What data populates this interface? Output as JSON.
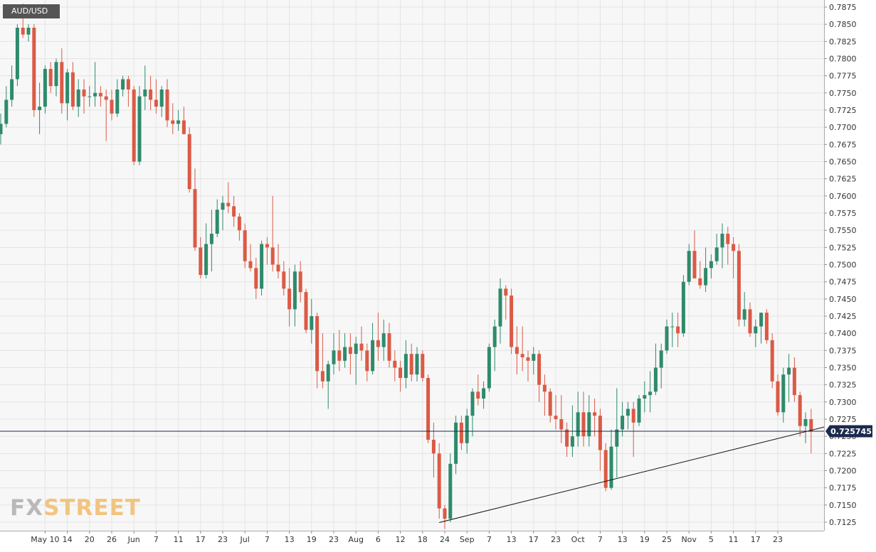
{
  "chart_data": {
    "type": "candlestick",
    "symbol": "AUD/USD",
    "brand": {
      "fx": "FX",
      "street": "STREET"
    },
    "current_price_label": "0.725745",
    "current_price": 0.725745,
    "ylim": [
      0.7115,
      0.7885
    ],
    "y_ticks": [
      "0.7875",
      "0.7850",
      "0.7825",
      "0.7800",
      "0.7775",
      "0.7750",
      "0.7725",
      "0.7700",
      "0.7675",
      "0.7650",
      "0.7625",
      "0.7600",
      "0.7575",
      "0.7550",
      "0.7525",
      "0.7500",
      "0.7475",
      "0.7450",
      "0.7425",
      "0.7400",
      "0.7375",
      "0.7350",
      "0.7325",
      "0.7300",
      "0.7275",
      "0.7250",
      "0.7225",
      "0.7200",
      "0.7175",
      "0.7150",
      "0.7125"
    ],
    "x_ticks": [
      {
        "index": 8,
        "label": "May 10"
      },
      {
        "index": 12,
        "label": "14"
      },
      {
        "index": 16,
        "label": "20"
      },
      {
        "index": 20,
        "label": "26"
      },
      {
        "index": 24,
        "label": "Jun"
      },
      {
        "index": 28,
        "label": "7"
      },
      {
        "index": 32,
        "label": "11"
      },
      {
        "index": 36,
        "label": "17"
      },
      {
        "index": 40,
        "label": "23"
      },
      {
        "index": 44,
        "label": "Jul"
      },
      {
        "index": 48,
        "label": "7"
      },
      {
        "index": 52,
        "label": "13"
      },
      {
        "index": 56,
        "label": "19"
      },
      {
        "index": 60,
        "label": "23"
      },
      {
        "index": 64,
        "label": "Aug"
      },
      {
        "index": 68,
        "label": "6"
      },
      {
        "index": 72,
        "label": "12"
      },
      {
        "index": 76,
        "label": "18"
      },
      {
        "index": 80,
        "label": "24"
      },
      {
        "index": 84,
        "label": "Sep"
      },
      {
        "index": 88,
        "label": "7"
      },
      {
        "index": 92,
        "label": "13"
      },
      {
        "index": 96,
        "label": "17"
      },
      {
        "index": 100,
        "label": "23"
      },
      {
        "index": 104,
        "label": "Oct"
      },
      {
        "index": 108,
        "label": "7"
      },
      {
        "index": 112,
        "label": "13"
      },
      {
        "index": 116,
        "label": "19"
      },
      {
        "index": 120,
        "label": "25"
      },
      {
        "index": 124,
        "label": "Nov"
      },
      {
        "index": 128,
        "label": "5"
      },
      {
        "index": 132,
        "label": "11"
      },
      {
        "index": 136,
        "label": "17"
      },
      {
        "index": 140,
        "label": "23"
      }
    ],
    "trendline": {
      "from": {
        "index": 79,
        "price": 0.71245
      },
      "to": {
        "index": 144,
        "price": 0.72548
      }
    },
    "colors": {
      "up": "#2f8a6c",
      "down": "#db5a46",
      "background": "#f7f7f7",
      "grid": "#e4e4e4",
      "price_line": "#1b2a4e",
      "label_bg": "#1b2a4e",
      "trendline": "#111111"
    },
    "candles": [
      [
        0.769,
        0.772,
        0.7675,
        0.7705
      ],
      [
        0.7705,
        0.776,
        0.77,
        0.774
      ],
      [
        0.774,
        0.779,
        0.773,
        0.777
      ],
      [
        0.777,
        0.785,
        0.776,
        0.7845
      ],
      [
        0.7845,
        0.788,
        0.783,
        0.7835
      ],
      [
        0.7835,
        0.785,
        0.7825,
        0.7845
      ],
      [
        0.7845,
        0.785,
        0.7715,
        0.7725
      ],
      [
        0.7725,
        0.7765,
        0.769,
        0.773
      ],
      [
        0.773,
        0.779,
        0.772,
        0.7785
      ],
      [
        0.7785,
        0.7795,
        0.775,
        0.776
      ],
      [
        0.776,
        0.78,
        0.7745,
        0.7795
      ],
      [
        0.7795,
        0.7815,
        0.772,
        0.7735
      ],
      [
        0.7735,
        0.7785,
        0.771,
        0.778
      ],
      [
        0.778,
        0.7795,
        0.7725,
        0.773
      ],
      [
        0.773,
        0.777,
        0.7715,
        0.7755
      ],
      [
        0.7755,
        0.777,
        0.772,
        0.7745
      ],
      [
        0.7745,
        0.776,
        0.773,
        0.7745
      ],
      [
        0.7745,
        0.7795,
        0.773,
        0.775
      ],
      [
        0.775,
        0.776,
        0.773,
        0.7745
      ],
      [
        0.7745,
        0.7755,
        0.768,
        0.774
      ],
      [
        0.774,
        0.7755,
        0.771,
        0.772
      ],
      [
        0.772,
        0.777,
        0.7715,
        0.7755
      ],
      [
        0.7755,
        0.7775,
        0.7745,
        0.777
      ],
      [
        0.777,
        0.7775,
        0.773,
        0.7755
      ],
      [
        0.7755,
        0.776,
        0.7645,
        0.765
      ],
      [
        0.765,
        0.776,
        0.7645,
        0.7745
      ],
      [
        0.7745,
        0.779,
        0.7725,
        0.7755
      ],
      [
        0.7755,
        0.7775,
        0.7725,
        0.774
      ],
      [
        0.774,
        0.777,
        0.772,
        0.773
      ],
      [
        0.773,
        0.776,
        0.7715,
        0.7755
      ],
      [
        0.7755,
        0.777,
        0.77,
        0.771
      ],
      [
        0.771,
        0.7735,
        0.769,
        0.7705
      ],
      [
        0.7705,
        0.7725,
        0.7695,
        0.771
      ],
      [
        0.771,
        0.773,
        0.769,
        0.769
      ],
      [
        0.769,
        0.77,
        0.7605,
        0.761
      ],
      [
        0.761,
        0.764,
        0.752,
        0.7525
      ],
      [
        0.7525,
        0.754,
        0.748,
        0.7485
      ],
      [
        0.7485,
        0.756,
        0.748,
        0.753
      ],
      [
        0.753,
        0.758,
        0.749,
        0.7545
      ],
      [
        0.7545,
        0.7595,
        0.754,
        0.758
      ],
      [
        0.758,
        0.76,
        0.755,
        0.759
      ],
      [
        0.759,
        0.762,
        0.7575,
        0.7585
      ],
      [
        0.7585,
        0.76,
        0.7555,
        0.757
      ],
      [
        0.757,
        0.7575,
        0.7535,
        0.755
      ],
      [
        0.755,
        0.756,
        0.7495,
        0.7505
      ],
      [
        0.7505,
        0.753,
        0.749,
        0.7495
      ],
      [
        0.7495,
        0.751,
        0.745,
        0.7465
      ],
      [
        0.7465,
        0.7535,
        0.7455,
        0.753
      ],
      [
        0.753,
        0.754,
        0.75,
        0.7525
      ],
      [
        0.7525,
        0.76,
        0.749,
        0.75
      ],
      [
        0.75,
        0.753,
        0.748,
        0.749
      ],
      [
        0.749,
        0.7505,
        0.7455,
        0.7465
      ],
      [
        0.7465,
        0.7495,
        0.741,
        0.7435
      ],
      [
        0.7435,
        0.75,
        0.741,
        0.749
      ],
      [
        0.749,
        0.7505,
        0.7445,
        0.746
      ],
      [
        0.746,
        0.7465,
        0.74,
        0.7405
      ],
      [
        0.7405,
        0.745,
        0.7385,
        0.7425
      ],
      [
        0.7425,
        0.743,
        0.732,
        0.7345
      ],
      [
        0.7345,
        0.74,
        0.732,
        0.733
      ],
      [
        0.733,
        0.736,
        0.729,
        0.7355
      ],
      [
        0.7355,
        0.74,
        0.734,
        0.7375
      ],
      [
        0.7375,
        0.7405,
        0.7345,
        0.736
      ],
      [
        0.736,
        0.74,
        0.735,
        0.738
      ],
      [
        0.738,
        0.74,
        0.734,
        0.737
      ],
      [
        0.737,
        0.7395,
        0.7325,
        0.7385
      ],
      [
        0.7385,
        0.741,
        0.736,
        0.7375
      ],
      [
        0.7375,
        0.7385,
        0.733,
        0.7345
      ],
      [
        0.7345,
        0.7415,
        0.734,
        0.739
      ],
      [
        0.739,
        0.743,
        0.736,
        0.738
      ],
      [
        0.738,
        0.742,
        0.736,
        0.74
      ],
      [
        0.74,
        0.7415,
        0.735,
        0.736
      ],
      [
        0.736,
        0.7375,
        0.733,
        0.735
      ],
      [
        0.735,
        0.736,
        0.7315,
        0.7335
      ],
      [
        0.7335,
        0.739,
        0.732,
        0.737
      ],
      [
        0.737,
        0.7385,
        0.733,
        0.734
      ],
      [
        0.734,
        0.738,
        0.733,
        0.737
      ],
      [
        0.737,
        0.7375,
        0.733,
        0.7335
      ],
      [
        0.7335,
        0.734,
        0.724,
        0.7245
      ],
      [
        0.7245,
        0.727,
        0.719,
        0.7225
      ],
      [
        0.7225,
        0.724,
        0.713,
        0.7145
      ],
      [
        0.7145,
        0.715,
        0.7115,
        0.713
      ],
      [
        0.713,
        0.7225,
        0.7125,
        0.721
      ],
      [
        0.721,
        0.728,
        0.7195,
        0.727
      ],
      [
        0.727,
        0.728,
        0.723,
        0.724
      ],
      [
        0.724,
        0.729,
        0.7225,
        0.728
      ],
      [
        0.728,
        0.732,
        0.725,
        0.7315
      ],
      [
        0.7315,
        0.734,
        0.7295,
        0.7305
      ],
      [
        0.7305,
        0.733,
        0.729,
        0.732
      ],
      [
        0.732,
        0.7385,
        0.7315,
        0.738
      ],
      [
        0.738,
        0.742,
        0.7345,
        0.741
      ],
      [
        0.741,
        0.748,
        0.7385,
        0.7465
      ],
      [
        0.7465,
        0.747,
        0.742,
        0.7455
      ],
      [
        0.7455,
        0.7465,
        0.737,
        0.738
      ],
      [
        0.738,
        0.741,
        0.734,
        0.737
      ],
      [
        0.737,
        0.741,
        0.7345,
        0.7365
      ],
      [
        0.7365,
        0.7375,
        0.733,
        0.736
      ],
      [
        0.736,
        0.738,
        0.734,
        0.737
      ],
      [
        0.737,
        0.7375,
        0.73,
        0.7325
      ],
      [
        0.7325,
        0.734,
        0.728,
        0.7315
      ],
      [
        0.7315,
        0.732,
        0.727,
        0.728
      ],
      [
        0.728,
        0.731,
        0.726,
        0.7275
      ],
      [
        0.7275,
        0.731,
        0.724,
        0.726
      ],
      [
        0.726,
        0.727,
        0.722,
        0.7235
      ],
      [
        0.7235,
        0.7295,
        0.722,
        0.725
      ],
      [
        0.725,
        0.7315,
        0.7235,
        0.7285
      ],
      [
        0.7285,
        0.7315,
        0.7235,
        0.725
      ],
      [
        0.725,
        0.731,
        0.7235,
        0.7285
      ],
      [
        0.7285,
        0.7305,
        0.725,
        0.728
      ],
      [
        0.728,
        0.729,
        0.72,
        0.723
      ],
      [
        0.723,
        0.724,
        0.717,
        0.7175
      ],
      [
        0.7175,
        0.726,
        0.7172,
        0.7235
      ],
      [
        0.7235,
        0.732,
        0.719,
        0.726
      ],
      [
        0.726,
        0.73,
        0.725,
        0.728
      ],
      [
        0.728,
        0.73,
        0.726,
        0.729
      ],
      [
        0.729,
        0.73,
        0.722,
        0.727
      ],
      [
        0.727,
        0.731,
        0.7265,
        0.7305
      ],
      [
        0.7305,
        0.733,
        0.7285,
        0.731
      ],
      [
        0.731,
        0.7345,
        0.7285,
        0.7315
      ],
      [
        0.7315,
        0.7385,
        0.731,
        0.735
      ],
      [
        0.735,
        0.7385,
        0.732,
        0.7375
      ],
      [
        0.7375,
        0.742,
        0.737,
        0.741
      ],
      [
        0.741,
        0.743,
        0.738,
        0.741
      ],
      [
        0.741,
        0.743,
        0.738,
        0.74
      ],
      [
        0.74,
        0.7485,
        0.7395,
        0.7475
      ],
      [
        0.7475,
        0.753,
        0.747,
        0.752
      ],
      [
        0.752,
        0.755,
        0.748,
        0.748
      ],
      [
        0.748,
        0.7505,
        0.7465,
        0.747
      ],
      [
        0.747,
        0.7525,
        0.746,
        0.7495
      ],
      [
        0.7495,
        0.7515,
        0.748,
        0.7505
      ],
      [
        0.7505,
        0.7545,
        0.75,
        0.7525
      ],
      [
        0.7525,
        0.756,
        0.7495,
        0.7545
      ],
      [
        0.7545,
        0.7555,
        0.75,
        0.753
      ],
      [
        0.753,
        0.754,
        0.748,
        0.752
      ],
      [
        0.752,
        0.753,
        0.741,
        0.742
      ],
      [
        0.742,
        0.746,
        0.741,
        0.7435
      ],
      [
        0.7435,
        0.7445,
        0.7395,
        0.74
      ],
      [
        0.74,
        0.742,
        0.738,
        0.741
      ],
      [
        0.741,
        0.743,
        0.7385,
        0.743
      ],
      [
        0.743,
        0.7435,
        0.7385,
        0.739
      ],
      [
        0.739,
        0.74,
        0.732,
        0.733
      ],
      [
        0.733,
        0.734,
        0.728,
        0.7285
      ],
      [
        0.7285,
        0.735,
        0.727,
        0.734
      ],
      [
        0.734,
        0.737,
        0.73,
        0.735
      ],
      [
        0.735,
        0.7365,
        0.73,
        0.731
      ],
      [
        0.731,
        0.7315,
        0.725,
        0.7265
      ],
      [
        0.7265,
        0.7285,
        0.724,
        0.7275
      ],
      [
        0.7275,
        0.729,
        0.7225,
        0.7257
      ]
    ]
  }
}
